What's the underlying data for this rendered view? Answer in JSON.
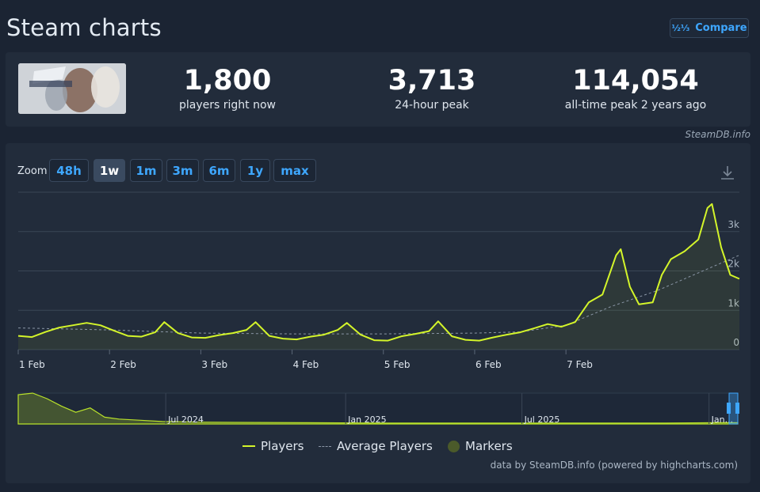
{
  "page": {
    "title": "Steam charts",
    "compare_label": "Compare",
    "compare_icon": "fraction-icon"
  },
  "stats": [
    {
      "value": "1,800",
      "label": "players right now"
    },
    {
      "value": "3,713",
      "label": "24-hour peak"
    },
    {
      "value": "114,054",
      "label": "all-time peak 2 years ago"
    }
  ],
  "credit_top": "SteamDB.info",
  "zoom": {
    "label": "Zoom",
    "options": [
      "48h",
      "1w",
      "1m",
      "3m",
      "6m",
      "1y",
      "max"
    ],
    "active": "1w"
  },
  "legend": {
    "players": "Players",
    "average": "Average Players",
    "markers": "Markers"
  },
  "credit_bottom": "data by SteamDB.info (powered by highcharts.com)",
  "colors": {
    "players": "#d4f52a",
    "average": "#8a96a6",
    "accent": "#3ea7ff",
    "markers": "#4b5a2a"
  },
  "chart_data": [
    {
      "type": "line",
      "x_unit": "days",
      "x_ticks": [
        "1 Feb",
        "2 Feb",
        "3 Feb",
        "4 Feb",
        "5 Feb",
        "6 Feb",
        "7 Feb"
      ],
      "y_ticks": [
        "0",
        "1k",
        "2k",
        "3k"
      ],
      "ylim": [
        0,
        4000
      ],
      "xlim": [
        0,
        7.9
      ],
      "grid": true,
      "legend_position": "bottom",
      "series": [
        {
          "name": "Players",
          "x": [
            0,
            0.15,
            0.3,
            0.45,
            0.6,
            0.75,
            0.9,
            1.05,
            1.2,
            1.35,
            1.5,
            1.6,
            1.75,
            1.9,
            2.05,
            2.2,
            2.35,
            2.5,
            2.6,
            2.75,
            2.9,
            3.05,
            3.2,
            3.35,
            3.5,
            3.6,
            3.75,
            3.9,
            4.05,
            4.2,
            4.35,
            4.5,
            4.6,
            4.75,
            4.9,
            5.05,
            5.2,
            5.35,
            5.5,
            5.65,
            5.8,
            5.95,
            6.1,
            6.25,
            6.4,
            6.55,
            6.6,
            6.7,
            6.8,
            6.95,
            7.05,
            7.15,
            7.3,
            7.45,
            7.55,
            7.6,
            7.7,
            7.8,
            7.9
          ],
          "y": [
            350,
            320,
            450,
            560,
            620,
            680,
            620,
            480,
            350,
            330,
            440,
            700,
            420,
            310,
            300,
            370,
            420,
            500,
            700,
            350,
            280,
            260,
            330,
            380,
            500,
            680,
            380,
            240,
            230,
            340,
            400,
            470,
            720,
            340,
            250,
            230,
            310,
            380,
            440,
            540,
            650,
            580,
            700,
            1200,
            1400,
            2400,
            2550,
            1600,
            1150,
            1200,
            1900,
            2300,
            2500,
            2800,
            3600,
            3700,
            2600,
            1900,
            1800
          ]
        },
        {
          "name": "Average Players",
          "x": [
            0,
            1,
            2,
            3,
            4,
            5,
            5.5,
            6,
            6.5,
            7,
            7.5,
            7.9
          ],
          "y": [
            550,
            500,
            420,
            400,
            400,
            420,
            450,
            620,
            1100,
            1500,
            2000,
            2400
          ]
        }
      ]
    },
    {
      "type": "area",
      "x_ticks": [
        "Jul 2024",
        "Jan 2025",
        "Jul 2025",
        "Jan..."
      ],
      "series": [
        {
          "name": "Players",
          "x": [
            0,
            0.02,
            0.04,
            0.06,
            0.08,
            0.1,
            0.12,
            0.14,
            0.17,
            0.2,
            0.25,
            0.3,
            0.4,
            0.5,
            0.6,
            0.7,
            0.8,
            0.9,
            0.97,
            1.0
          ],
          "y": [
            95,
            100,
            82,
            58,
            38,
            52,
            22,
            16,
            12,
            8,
            6,
            5,
            4,
            3,
            3,
            3,
            3,
            3,
            4,
            4
          ]
        }
      ]
    }
  ]
}
